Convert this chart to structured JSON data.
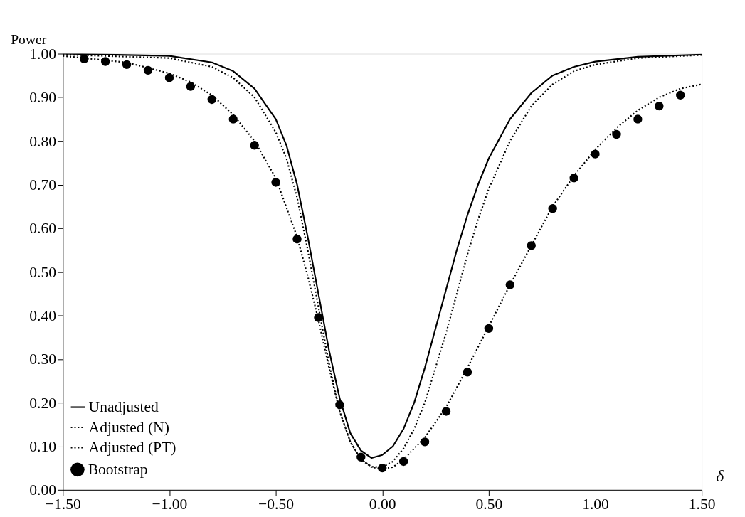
{
  "chart_data": {
    "type": "line",
    "xlabel": "δ",
    "ylabel": "Power",
    "xlim": [
      -1.5,
      1.5
    ],
    "ylim": [
      0,
      1
    ],
    "xticks": [
      {
        "value": -1.5,
        "label": "−1.50"
      },
      {
        "value": -1.0,
        "label": "−1.00"
      },
      {
        "value": -0.5,
        "label": "−0.50"
      },
      {
        "value": 0,
        "label": "0.00"
      },
      {
        "value": 0.5,
        "label": "0.50"
      },
      {
        "value": 1.0,
        "label": "1.00"
      },
      {
        "value": 1.5,
        "label": "1.50"
      }
    ],
    "yticks": [
      {
        "value": 0,
        "label": "0.00"
      },
      {
        "value": 0.1,
        "label": "0.10"
      },
      {
        "value": 0.2,
        "label": "0.20"
      },
      {
        "value": 0.3,
        "label": "0.30"
      },
      {
        "value": 0.4,
        "label": "0.40"
      },
      {
        "value": 0.5,
        "label": "0.50"
      },
      {
        "value": 0.6,
        "label": "0.60"
      },
      {
        "value": 0.7,
        "label": "0.70"
      },
      {
        "value": 0.8,
        "label": "0.80"
      },
      {
        "value": 0.9,
        "label": "0.90"
      },
      {
        "value": 1.0,
        "label": "1.00"
      }
    ],
    "grid": false,
    "legend": "bottom left",
    "series": [
      {
        "name": "Unadjusted",
        "color": "#000000",
        "line_style": "solid",
        "x": [
          -1.5,
          -1.0,
          -0.8,
          -0.7,
          -0.6,
          -0.5,
          -0.45,
          -0.4,
          -0.35,
          -0.3,
          -0.25,
          -0.2,
          -0.15,
          -0.1,
          -0.05,
          0,
          0.05,
          0.1,
          0.15,
          0.2,
          0.25,
          0.3,
          0.35,
          0.4,
          0.45,
          0.5,
          0.6,
          0.7,
          0.8,
          0.9,
          1.0,
          1.2,
          1.5
        ],
        "values": [
          1.0,
          0.995,
          0.98,
          0.96,
          0.92,
          0.85,
          0.79,
          0.7,
          0.58,
          0.45,
          0.32,
          0.21,
          0.13,
          0.09,
          0.073,
          0.08,
          0.1,
          0.14,
          0.2,
          0.28,
          0.37,
          0.46,
          0.55,
          0.63,
          0.7,
          0.76,
          0.85,
          0.91,
          0.95,
          0.97,
          0.982,
          0.993,
          0.998
        ]
      },
      {
        "name": "Adjusted (N)",
        "color": "#000000",
        "line_style": "dotted",
        "x": [
          -1.5,
          -1.0,
          -0.8,
          -0.7,
          -0.6,
          -0.5,
          -0.45,
          -0.4,
          -0.35,
          -0.3,
          -0.25,
          -0.2,
          -0.15,
          -0.1,
          -0.05,
          0,
          0.05,
          0.1,
          0.15,
          0.2,
          0.25,
          0.3,
          0.35,
          0.4,
          0.45,
          0.5,
          0.6,
          0.7,
          0.8,
          0.9,
          1.0,
          1.2,
          1.5
        ],
        "values": [
          0.998,
          0.99,
          0.97,
          0.945,
          0.9,
          0.82,
          0.76,
          0.67,
          0.55,
          0.42,
          0.29,
          0.18,
          0.11,
          0.07,
          0.053,
          0.052,
          0.065,
          0.095,
          0.14,
          0.2,
          0.28,
          0.36,
          0.45,
          0.54,
          0.62,
          0.69,
          0.8,
          0.88,
          0.93,
          0.96,
          0.975,
          0.99,
          0.997
        ]
      },
      {
        "name": "Adjusted (PT)",
        "color": "#000000",
        "line_style": "dotted",
        "x": [
          -1.5,
          -1.4,
          -1.2,
          -1.0,
          -0.9,
          -0.8,
          -0.7,
          -0.6,
          -0.5,
          -0.4,
          -0.35,
          -0.3,
          -0.25,
          -0.2,
          -0.15,
          -0.1,
          -0.05,
          0,
          0.05,
          0.1,
          0.2,
          0.3,
          0.4,
          0.5,
          0.6,
          0.7,
          0.8,
          0.9,
          1.0,
          1.1,
          1.2,
          1.3,
          1.4,
          1.5
        ],
        "values": [
          0.995,
          0.99,
          0.98,
          0.955,
          0.935,
          0.905,
          0.86,
          0.8,
          0.715,
          0.58,
          0.49,
          0.39,
          0.28,
          0.18,
          0.11,
          0.07,
          0.052,
          0.048,
          0.052,
          0.07,
          0.12,
          0.19,
          0.28,
          0.375,
          0.47,
          0.56,
          0.65,
          0.72,
          0.78,
          0.83,
          0.87,
          0.9,
          0.92,
          0.93
        ]
      },
      {
        "name": "Bootstrap",
        "type": "scatter",
        "marker": "circle",
        "color": "#000000",
        "x": [
          -1.4,
          -1.3,
          -1.2,
          -1.1,
          -1.0,
          -0.9,
          -0.8,
          -0.7,
          -0.6,
          -0.5,
          -0.4,
          -0.3,
          -0.2,
          -0.1,
          0,
          0.1,
          0.2,
          0.3,
          0.4,
          0.5,
          0.6,
          0.7,
          0.8,
          0.9,
          1.0,
          1.1,
          1.2,
          1.3,
          1.4
        ],
        "values": [
          0.988,
          0.982,
          0.975,
          0.962,
          0.945,
          0.925,
          0.895,
          0.85,
          0.79,
          0.705,
          0.575,
          0.395,
          0.195,
          0.075,
          0.05,
          0.065,
          0.11,
          0.18,
          0.27,
          0.37,
          0.47,
          0.56,
          0.645,
          0.715,
          0.77,
          0.815,
          0.85,
          0.88,
          0.905
        ]
      }
    ]
  }
}
